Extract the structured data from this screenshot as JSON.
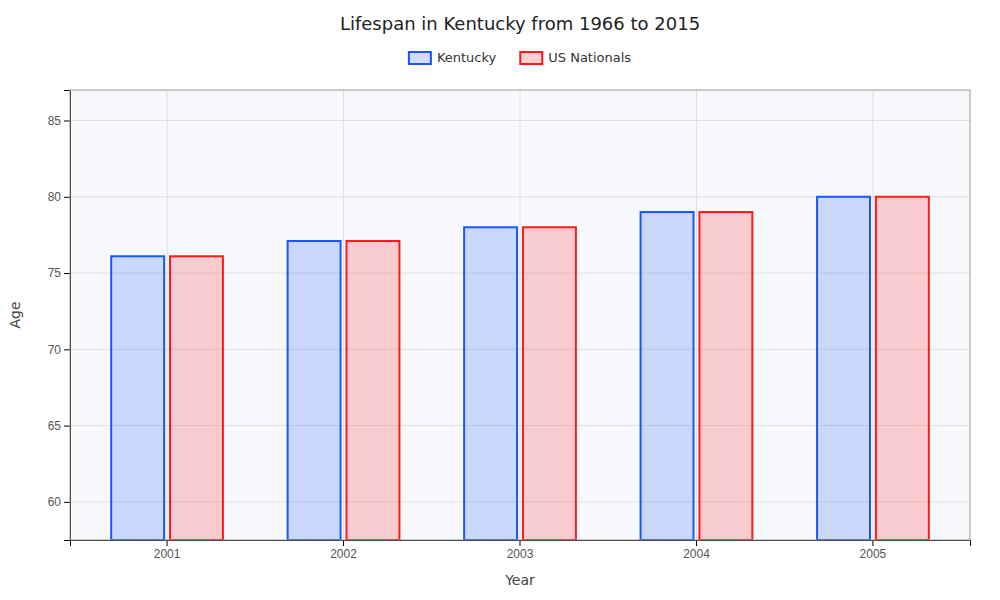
{
  "chart_data": {
    "type": "bar",
    "title": "Lifespan in Kentucky from 1966 to 2015",
    "x_label": "Year",
    "y_label": "Age",
    "categories": [
      "2001",
      "2002",
      "2003",
      "2004",
      "2005"
    ],
    "series": [
      {
        "name": "Kentucky",
        "color": "#1a56ff",
        "values": [
          76.1,
          77.1,
          78.0,
          79.0,
          80.0
        ]
      },
      {
        "name": "US Nationals",
        "color": "#ff1a1a",
        "values": [
          76.1,
          77.1,
          78.0,
          79.0,
          80.0
        ]
      }
    ],
    "ylim": [
      57.5,
      87
    ],
    "yticks": [
      60,
      65,
      70,
      75,
      80,
      85
    ],
    "grid": true,
    "legend": "top"
  }
}
